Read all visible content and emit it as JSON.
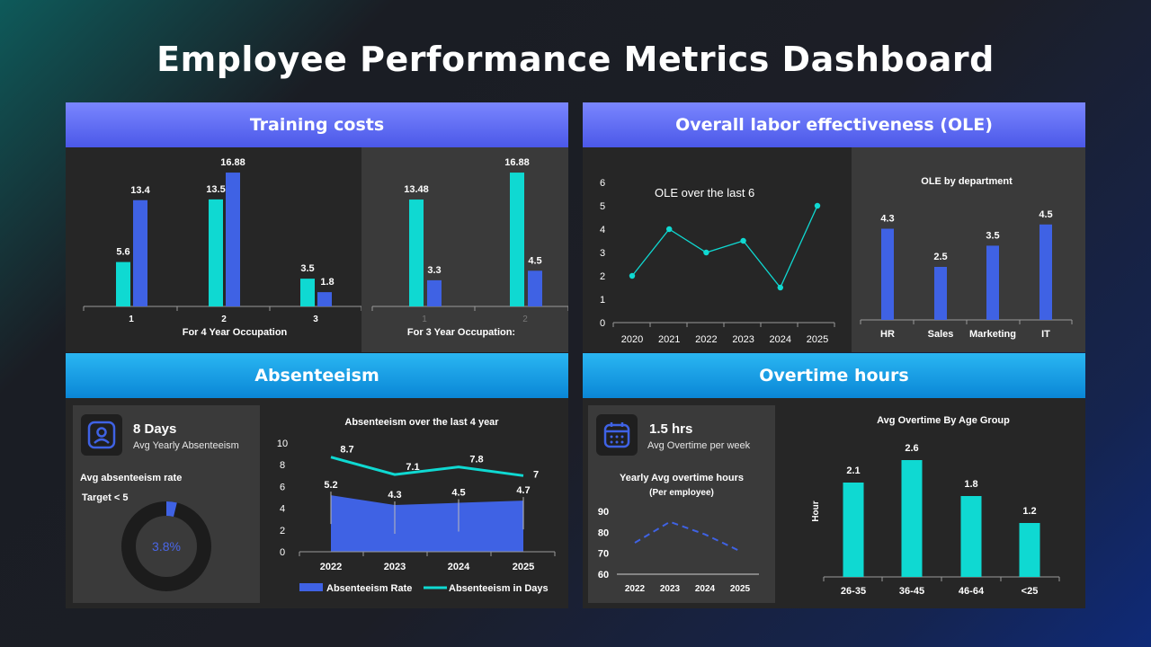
{
  "title": "Employee Performance Metrics Dashboard",
  "colors": {
    "cyan": "#0fd9d2",
    "blue": "#3f62e4",
    "panel": "#262626",
    "subpanel": "#3a3a3a"
  },
  "panels": {
    "training": {
      "header": "Training costs"
    },
    "ole": {
      "header": "Overall labor effectiveness (OLE)"
    },
    "absenteeism": {
      "header": "Absenteeism",
      "kpi_value": "8 Days",
      "kpi_label": "Avg Yearly Absenteeism",
      "rate_label": "Avg absenteeism rate",
      "target_label": "Target < 5",
      "donut_value": "3.8%",
      "icon": "user-badge-icon"
    },
    "overtime": {
      "header": "Overtime hours",
      "kpi_value": "1.5 hrs",
      "kpi_label": "Avg Overtime per week",
      "icon": "calendar-icon"
    }
  },
  "chart_data": [
    {
      "id": "training4",
      "type": "bar",
      "categories": [
        "1",
        "2",
        "3"
      ],
      "series": [
        {
          "values": [
            5.6,
            13.5,
            3.5
          ],
          "color": "#0fd9d2"
        },
        {
          "values": [
            13.4,
            16.88,
            1.8
          ],
          "color": "#3f62e4"
        }
      ],
      "labels": [
        [
          "5.6",
          "13.5",
          "3.5"
        ],
        [
          "13.4",
          "16.88",
          "1.8"
        ]
      ],
      "xlabel": "For 4 Year Occupation",
      "ylim": [
        0,
        17
      ]
    },
    {
      "id": "training3",
      "type": "bar",
      "categories": [
        "1",
        "2"
      ],
      "series": [
        {
          "values": [
            13.48,
            16.88
          ],
          "color": "#0fd9d2"
        },
        {
          "values": [
            3.3,
            4.5
          ],
          "color": "#3f62e4"
        }
      ],
      "labels": [
        [
          "13.48",
          "16.88"
        ],
        [
          "3.3",
          "4.5"
        ]
      ],
      "xlabel": "For 3 Year Occupation:",
      "ylim": [
        0,
        17
      ]
    },
    {
      "id": "ole_line",
      "type": "line",
      "title": "OLE over the last 6",
      "x": [
        "2020",
        "2021",
        "2022",
        "2023",
        "2024",
        "2025"
      ],
      "y": [
        2,
        4,
        3,
        3.5,
        1.5,
        5
      ],
      "yticks": [
        "0",
        "1",
        "2",
        "3",
        "4",
        "5",
        "6"
      ],
      "ylim": [
        0,
        6
      ],
      "color": "#0fd9d2"
    },
    {
      "id": "ole_dept",
      "type": "bar",
      "title": "OLE by department",
      "categories": [
        "HR",
        "Sales",
        "Marketing",
        "IT"
      ],
      "values": [
        4.3,
        2.5,
        3.5,
        4.5
      ],
      "labels": [
        "4.3",
        "2.5",
        "3.5",
        "4.5"
      ],
      "ylim": [
        0,
        5
      ],
      "color": "#3f62e4"
    },
    {
      "id": "absent_combo",
      "type": "area",
      "title": "Absenteeism over the last 4 year",
      "x": [
        "2022",
        "2023",
        "2024",
        "2025"
      ],
      "series": [
        {
          "name": "Absenteeism Rate",
          "values": [
            5.2,
            4.3,
            4.5,
            4.7
          ],
          "labels": [
            "5.2",
            "4.3",
            "4.5",
            "4.7"
          ],
          "color": "#3f62e4"
        },
        {
          "name": "Absenteeism in Days",
          "values": [
            8.7,
            7.1,
            7.8,
            7
          ],
          "labels": [
            "8.7",
            "7.1",
            "7.8",
            "7"
          ],
          "color": "#0fd9d2"
        }
      ],
      "yticks": [
        "0",
        "2",
        "4",
        "6",
        "8",
        "10"
      ],
      "ylim": [
        0,
        10
      ]
    },
    {
      "id": "absent_donut",
      "type": "pie",
      "values": [
        3.8,
        96.2
      ],
      "label": "3.8%"
    },
    {
      "id": "overtime_line",
      "type": "line",
      "title": "Yearly Avg overtime hours",
      "subtitle": "(Per employee)",
      "x": [
        "2022",
        "2023",
        "2024",
        "2025"
      ],
      "y": [
        75,
        85,
        79,
        71
      ],
      "yticks": [
        "60",
        "70",
        "80",
        "90"
      ],
      "ylim": [
        60,
        90
      ],
      "color": "#3f62e4"
    },
    {
      "id": "overtime_age",
      "type": "bar",
      "title": "Avg Overtime By Age Group",
      "ylabel": "Hour",
      "categories": [
        "26-35",
        "36-45",
        "46-64",
        "<25"
      ],
      "values": [
        2.1,
        2.6,
        1.8,
        1.2
      ],
      "labels": [
        "2.1",
        "2.6",
        "1.8",
        "1.2"
      ],
      "ylim": [
        0,
        2.6
      ],
      "color": "#0fd9d2"
    }
  ]
}
